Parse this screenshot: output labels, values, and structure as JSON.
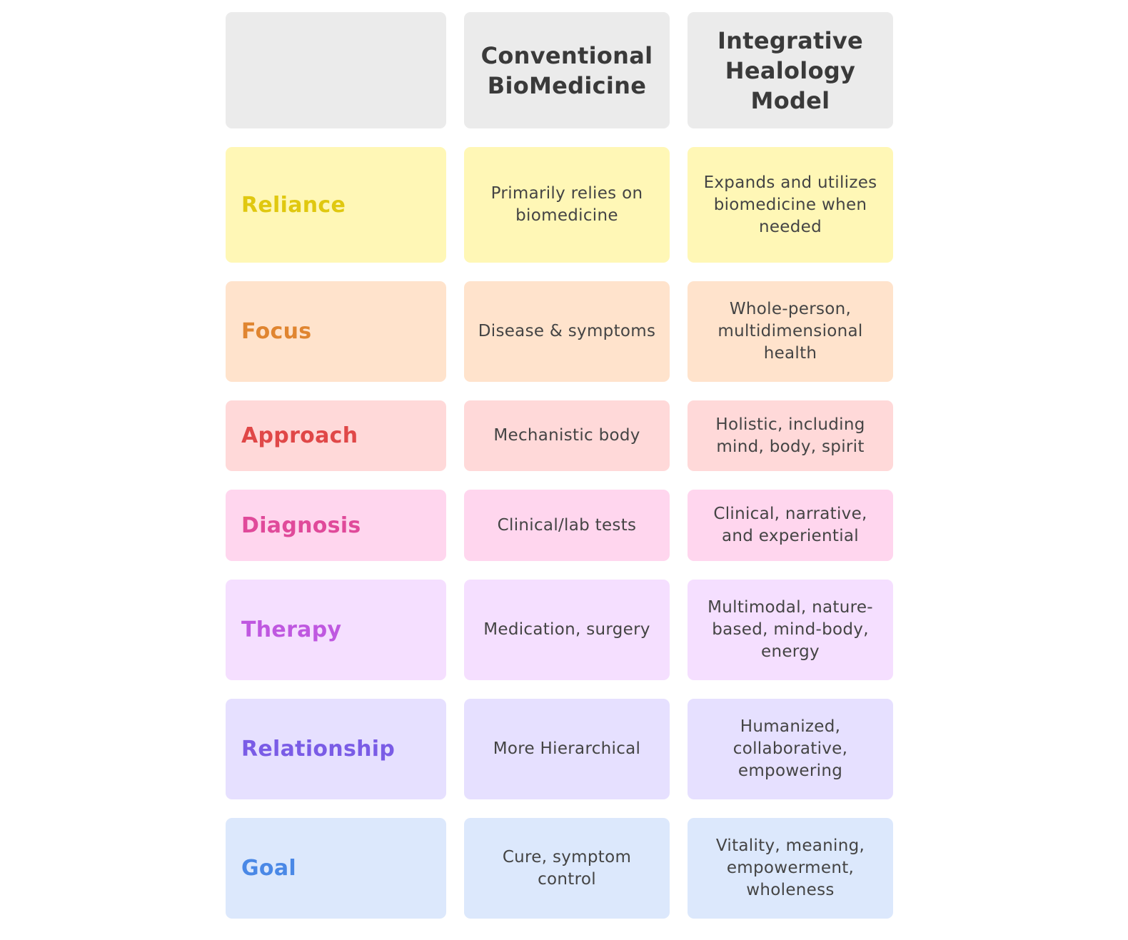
{
  "header": {
    "col1": "",
    "col2": "Conventional BioMedicine",
    "col3": "Integrative Healology Model"
  },
  "rows": [
    {
      "label": "Reliance",
      "conventional": "Primarily relies on biomedicine",
      "integrative": "Expands and utilizes biomedicine when needed",
      "bg": "#fff7b6",
      "color": "#e0c810"
    },
    {
      "label": "Focus",
      "conventional": "Disease & symptoms",
      "integrative": "Whole-person, multidimensional health",
      "bg": "#ffe3cc",
      "color": "#e08530"
    },
    {
      "label": "Approach",
      "conventional": "Mechanistic body",
      "integrative": "Holistic, including mind, body, spirit",
      "bg": "#ffd9d9",
      "color": "#e04848"
    },
    {
      "label": "Diagnosis",
      "conventional": "Clinical/lab tests",
      "integrative": "Clinical, narrative, and experiential",
      "bg": "#ffd6ee",
      "color": "#e04a9a"
    },
    {
      "label": "Therapy",
      "conventional": "Medication, surgery",
      "integrative": "Multimodal, nature-based, mind-body, energy",
      "bg": "#f5dfff",
      "color": "#bf58e0"
    },
    {
      "label": "Relationship",
      "conventional": "More Hierarchical",
      "integrative": "Humanized, collaborative, empowering",
      "bg": "#e6e0ff",
      "color": "#7a5ce6"
    },
    {
      "label": "Goal",
      "conventional": "Cure, symptom control",
      "integrative": "Vitality, meaning, empowerment, wholeness",
      "bg": "#dce8fc",
      "color": "#4a88e6"
    }
  ]
}
